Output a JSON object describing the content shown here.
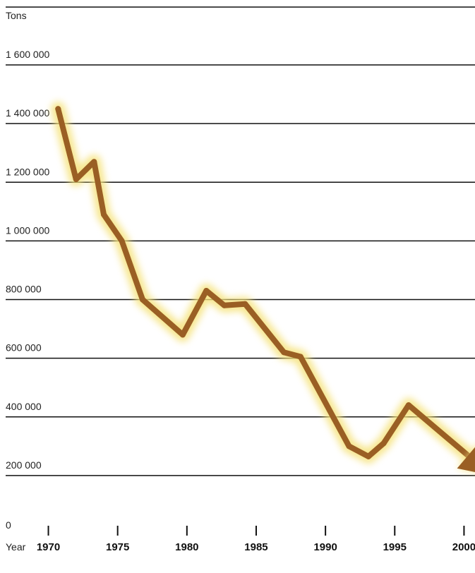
{
  "chart_data": {
    "type": "line",
    "title": "",
    "ylabel": "Tons",
    "xlabel": "Year",
    "ylim": [
      0,
      1600000
    ],
    "xlim": [
      1970,
      2002
    ],
    "grid": true,
    "y_ticks": [
      {
        "value": 0,
        "label": "0"
      },
      {
        "value": 200000,
        "label": "200 000"
      },
      {
        "value": 400000,
        "label": "400 000"
      },
      {
        "value": 600000,
        "label": "600 000"
      },
      {
        "value": 800000,
        "label": "800 000"
      },
      {
        "value": 1000000,
        "label": "1 000 000"
      },
      {
        "value": 1200000,
        "label": "1 200 000"
      },
      {
        "value": 1400000,
        "label": "1 400 000"
      },
      {
        "value": 1600000,
        "label": "1 600 000"
      }
    ],
    "x_ticks": [
      {
        "value": 1970,
        "label": "1970"
      },
      {
        "value": 1975,
        "label": "1975"
      },
      {
        "value": 1980,
        "label": "1980"
      },
      {
        "value": 1985,
        "label": "1985"
      },
      {
        "value": 1990,
        "label": "1990"
      },
      {
        "value": 1995,
        "label": "1995"
      },
      {
        "value": 2000,
        "label": "2000"
      }
    ],
    "series": [
      {
        "color": "#9a5f24",
        "glow": "#f5e27a",
        "x": [
          1970.7,
          1972.0,
          1973.3,
          1974.0,
          1975.3,
          1976.8,
          1979.7,
          1981.4,
          1982.7,
          1984.2,
          1987.0,
          1988.2,
          1991.7,
          1993.1,
          1994.2,
          1996.0,
          2002.0
        ],
        "y": [
          1450000,
          1210000,
          1270000,
          1090000,
          1000000,
          800000,
          680000,
          830000,
          780000,
          785000,
          620000,
          605000,
          300000,
          265000,
          310000,
          440000,
          200000
        ],
        "end_marker": "arrow"
      }
    ]
  }
}
